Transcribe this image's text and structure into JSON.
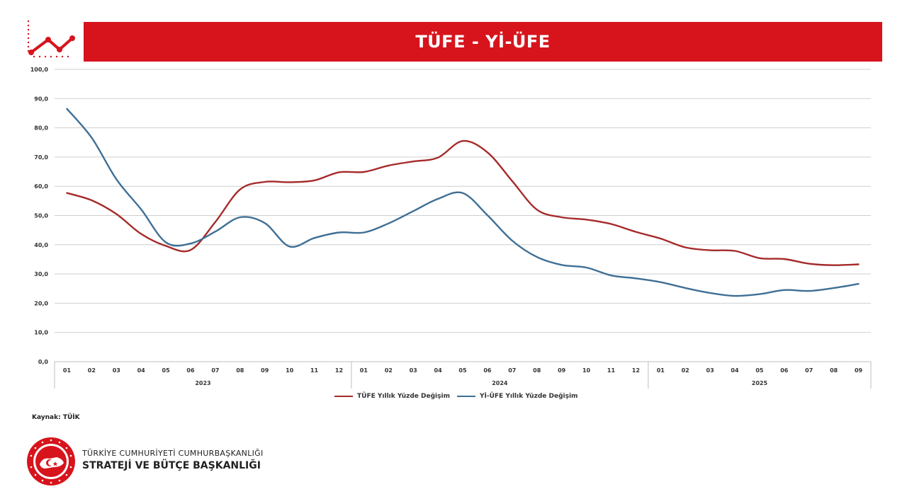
{
  "header": {
    "title": "TÜFE - Yİ-ÜFE",
    "banner_color": "#d7141c"
  },
  "icons": {
    "header_icon": "trend-line-chart-icon",
    "seal": "presidential-seal-icon"
  },
  "chart_data": {
    "type": "line",
    "title": "TÜFE - Yİ-ÜFE",
    "xlabel": "",
    "ylabel": "",
    "ylim": [
      0,
      100
    ],
    "y_ticks": [
      "0,0",
      "10,0",
      "20,0",
      "30,0",
      "40,0",
      "50,0",
      "60,0",
      "70,0",
      "80,0",
      "90,0",
      "100,0"
    ],
    "grid": true,
    "legend_position": "bottom-center",
    "categories": [
      "01",
      "02",
      "03",
      "04",
      "05",
      "06",
      "07",
      "08",
      "09",
      "10",
      "11",
      "12",
      "01",
      "02",
      "03",
      "04",
      "05",
      "06",
      "07",
      "08",
      "09",
      "10",
      "11",
      "12",
      "01",
      "02",
      "03",
      "04",
      "05",
      "06",
      "07",
      "08",
      "09"
    ],
    "year_groups": [
      {
        "label": "2023",
        "count": 12
      },
      {
        "label": "2024",
        "count": 12
      },
      {
        "label": "2025",
        "count": 9
      }
    ],
    "series": [
      {
        "name": "TÜFE Yıllık Yüzde Değişim",
        "color": "#a52a2a",
        "values": [
          57.7,
          55.2,
          50.5,
          43.7,
          39.6,
          38.2,
          47.8,
          58.9,
          61.5,
          61.4,
          62.0,
          64.8,
          64.9,
          67.1,
          68.5,
          69.8,
          75.5,
          71.6,
          61.8,
          52.0,
          49.4,
          48.6,
          47.1,
          44.4,
          42.1,
          39.1,
          38.1,
          37.9,
          35.4,
          35.1,
          33.5,
          33.0,
          33.3
        ]
      },
      {
        "name": "Yİ-ÜFE Yıllık Yüzde Değişim",
        "color": "#3f6f95",
        "values": [
          86.5,
          76.6,
          62.4,
          52.1,
          40.8,
          40.4,
          44.5,
          49.4,
          47.4,
          39.4,
          42.3,
          44.2,
          44.2,
          47.3,
          51.5,
          55.7,
          57.7,
          50.1,
          41.4,
          35.8,
          33.1,
          32.2,
          29.5,
          28.5,
          27.2,
          25.2,
          23.5,
          22.5,
          23.1,
          24.5,
          24.2,
          25.2,
          26.6
        ]
      }
    ]
  },
  "source": "Kaynak: TÜİK",
  "organization": {
    "line1": "TÜRKİYE CUMHURİYETİ CUMHURBAŞKANLIĞI",
    "line2": "STRATEJİ VE BÜTÇE BAŞKANLIĞI"
  }
}
